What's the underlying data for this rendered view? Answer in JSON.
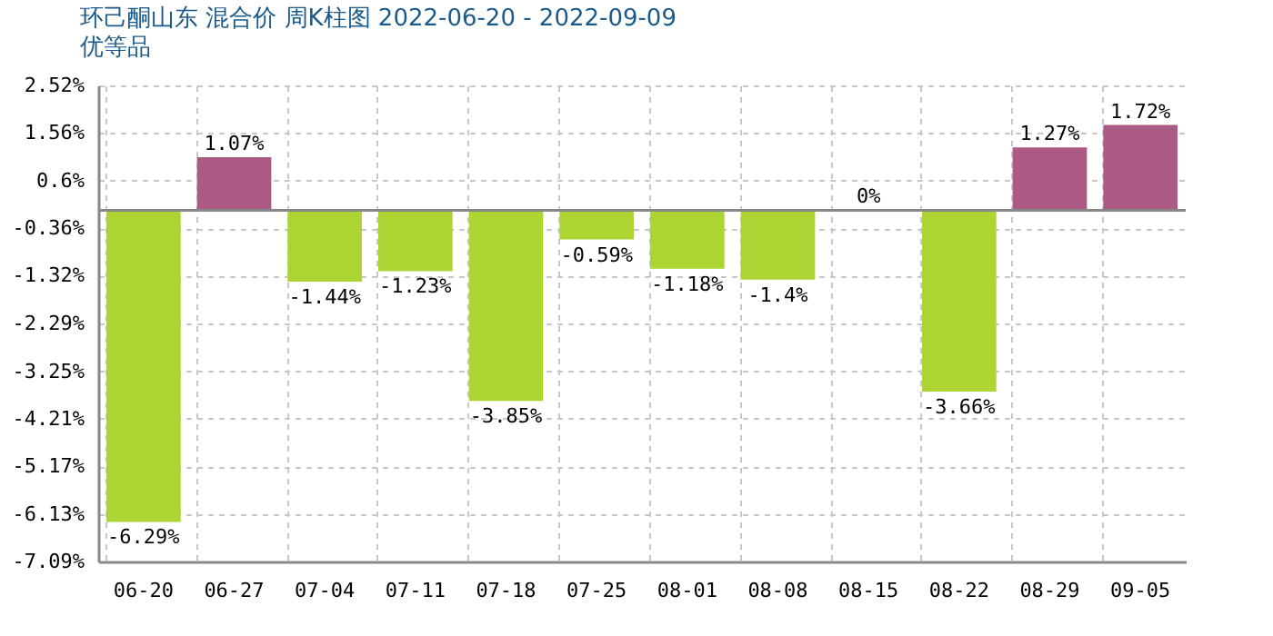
{
  "chart_data": {
    "type": "bar",
    "title": "环己酮山东 混合价 周K柱图 2022-06-20 - 2022-09-09",
    "subtitle": "优等品",
    "categories": [
      "06-20",
      "06-27",
      "07-04",
      "07-11",
      "07-18",
      "07-25",
      "08-01",
      "08-08",
      "08-15",
      "08-22",
      "08-29",
      "09-05"
    ],
    "values": [
      -6.29,
      1.07,
      -1.44,
      -1.23,
      -3.85,
      -0.59,
      -1.18,
      -1.4,
      0,
      -3.66,
      1.27,
      1.72
    ],
    "colors": [
      "#acd433",
      "#ab5a84",
      "#acd433",
      "#acd433",
      "#acd433",
      "#acd433",
      "#acd433",
      "#acd433",
      "#ab5a84",
      "#acd433",
      "#ab5a84",
      "#ab5a84"
    ],
    "value_labels": [
      "-6.29%",
      "1.07%",
      "-1.44%",
      "-1.23%",
      "-3.85%",
      "-0.59%",
      "-1.18%",
      "-1.4%",
      "0%",
      "-3.66%",
      "1.27%",
      "1.72%"
    ],
    "ylim": [
      -7.09,
      2.52
    ],
    "yticks": [
      {
        "value": 2.52,
        "label": "2.52%"
      },
      {
        "value": 1.56,
        "label": "1.56%"
      },
      {
        "value": 0.6,
        "label": "0.6%"
      },
      {
        "value": -0.36,
        "label": "-0.36%"
      },
      {
        "value": -1.32,
        "label": "-1.32%"
      },
      {
        "value": -2.29,
        "label": "-2.29%"
      },
      {
        "value": -3.25,
        "label": "-3.25%"
      },
      {
        "value": -4.21,
        "label": "-4.21%"
      },
      {
        "value": -5.17,
        "label": "-5.17%"
      },
      {
        "value": -6.13,
        "label": "-6.13%"
      },
      {
        "value": -7.09,
        "label": "-7.09%"
      }
    ],
    "ref_lines": [
      {
        "axis": "y",
        "value": 0,
        "color": "#888888"
      }
    ],
    "grid": true
  }
}
